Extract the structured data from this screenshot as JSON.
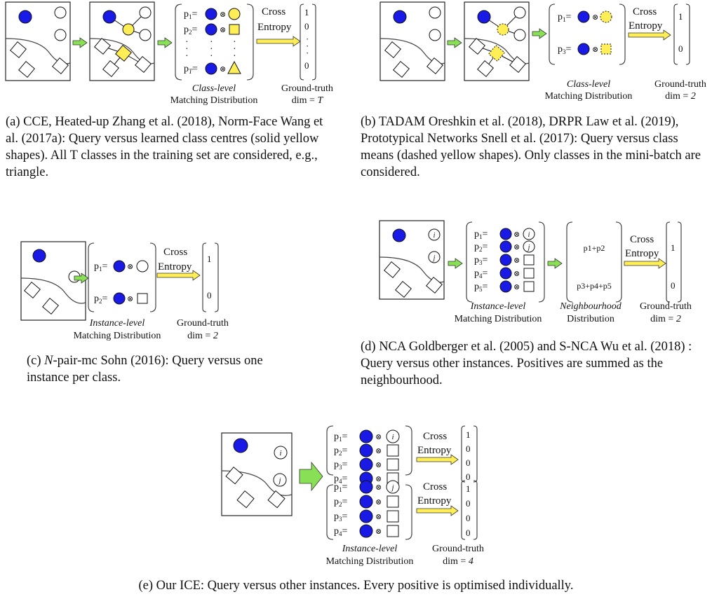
{
  "panels": {
    "a": {
      "rows": [
        {
          "p_label": "p",
          "p_sub": "1",
          "eq": "=",
          "gt": "1"
        },
        {
          "p_label": "p",
          "p_sub": "2",
          "eq": "=",
          "gt": "0"
        },
        {
          "p_label": "p",
          "p_sub": "T",
          "eq": "=",
          "gt": "0"
        }
      ],
      "arrow_label_1": "Cross",
      "arrow_label_2": "Entropy",
      "matching_label_1": "Class-level",
      "matching_label_2": "Matching Distribution",
      "gt_label_1": "Ground-truth",
      "gt_label_2_prefix": "dim = ",
      "gt_label_2_value": "T",
      "caption": "(a) CCE, Heated-up Zhang et al. (2018), Norm-Face Wang et al. (2017a): Query versus learned class centres (solid yellow shapes). All T classes in the training set are considered, e.g., triangle."
    },
    "b": {
      "rows": [
        {
          "p_label": "p",
          "p_sub": "1",
          "eq": "=",
          "gt": "1"
        },
        {
          "p_label": "p",
          "p_sub": "3",
          "eq": "=",
          "gt": "0"
        }
      ],
      "arrow_label_1": "Cross",
      "arrow_label_2": "Entropy",
      "matching_label_1": "Class-level",
      "matching_label_2": "Matching Distribution",
      "gt_label_1": "Ground-truth",
      "gt_label_2_prefix": "dim = ",
      "gt_label_2_value": "2",
      "caption": "(b) TADAM Oreshkin et al. (2018), DRPR Law et al. (2019), Prototypical Networks Snell et al. (2017): Query versus class means (dashed yellow shapes). Only classes in the mini-batch are considered."
    },
    "c": {
      "rows": [
        {
          "p_label": "p",
          "p_sub": "1",
          "eq": "=",
          "gt": "1"
        },
        {
          "p_label": "p",
          "p_sub": "2",
          "eq": "=",
          "gt": "0"
        }
      ],
      "arrow_label_1": "Cross",
      "arrow_label_2": "Entropy",
      "matching_label_1": "Instance-level",
      "matching_label_2": "Matching Distribution",
      "gt_label_1": "Ground-truth",
      "gt_label_2_prefix": "dim = ",
      "gt_label_2_value": "2",
      "caption_italic": "N",
      "caption": "-pair-mc Sohn (2016): Query versus one instance per class.",
      "caption_prefix": "(c) "
    },
    "d": {
      "rows": [
        {
          "p_label": "p",
          "p_sub": "1",
          "eq": "="
        },
        {
          "p_label": "p",
          "p_sub": "2",
          "eq": "="
        },
        {
          "p_label": "p",
          "p_sub": "3",
          "eq": "="
        },
        {
          "p_label": "p",
          "p_sub": "4",
          "eq": "="
        },
        {
          "p_label": "p",
          "p_sub": "5",
          "eq": "="
        }
      ],
      "neigh_1": "p1+p2",
      "neigh_2": "p3+p4+p5",
      "gt": [
        "1",
        "0"
      ],
      "arrow_label_1": "Cross",
      "arrow_label_2": "Entropy",
      "matching_label_1": "Instance-level",
      "matching_label_2": "Matching Distribution",
      "neigh_label_1": "Neighbourhood",
      "neigh_label_2": "Distribution",
      "gt_label_1": "Ground-truth",
      "gt_label_2_prefix": "dim = ",
      "gt_label_2_value": "2",
      "caption": "(d) NCA Goldberger et al. (2005) and S-NCA Wu et al. (2018) : Query versus other instances. Positives are summed as the neighbourhood."
    },
    "e": {
      "group1": [
        {
          "p_label": "p",
          "p_sub": "1",
          "eq": "=",
          "gt": "1"
        },
        {
          "p_label": "p",
          "p_sub": "2",
          "eq": "=",
          "gt": "0"
        },
        {
          "p_label": "p",
          "p_sub": "3",
          "eq": "=",
          "gt": "0"
        },
        {
          "p_label": "p",
          "p_sub": "4",
          "eq": "=",
          "gt": "0"
        }
      ],
      "group2": [
        {
          "p_label": "p",
          "p_sub": "1",
          "eq": "=",
          "gt": "1"
        },
        {
          "p_label": "p",
          "p_sub": "2",
          "eq": "=",
          "gt": "0"
        },
        {
          "p_label": "p",
          "p_sub": "3",
          "eq": "=",
          "gt": "0"
        },
        {
          "p_label": "p",
          "p_sub": "4",
          "eq": "=",
          "gt": "0"
        }
      ],
      "arrow_label_1": "Cross",
      "arrow_label_2": "Entropy",
      "matching_label_1": "Instance-level",
      "matching_label_2": "Matching Distribution",
      "gt_label_1": "Ground-truth",
      "gt_label_2_prefix": "dim = ",
      "gt_label_2_value": "4",
      "caption": "(e) Our ICE: Query versus other instances. Every positive is optimised individually."
    },
    "node_labels": {
      "i": "i",
      "j": "j"
    },
    "dots": "·"
  },
  "colors": {
    "query_fill": "#1a1ae6",
    "center_fill": "#ffee55",
    "arrow_fill": "#88e055",
    "ce_arrow_fill": "#ffee55"
  }
}
